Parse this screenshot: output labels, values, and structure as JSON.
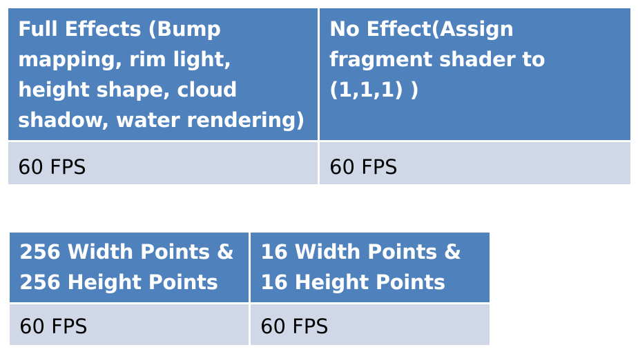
{
  "tables": [
    {
      "headers": [
        "Full Effects (Bump mapping, rim light, height shape, cloud shadow, water rendering)",
        "No Effect(Assign fragment shader to (1,1,1) )"
      ],
      "row": [
        "60 FPS",
        "60 FPS"
      ]
    },
    {
      "headers": [
        "256 Width Points & 256 Height Points",
        "16 Width Points & 16 Height Points"
      ],
      "row": [
        "60 FPS",
        "60 FPS"
      ]
    }
  ],
  "colors": {
    "header_bg": "#4f81bd",
    "row_bg": "#d0d8e8",
    "header_text": "#ffffff",
    "row_text": "#000000"
  }
}
